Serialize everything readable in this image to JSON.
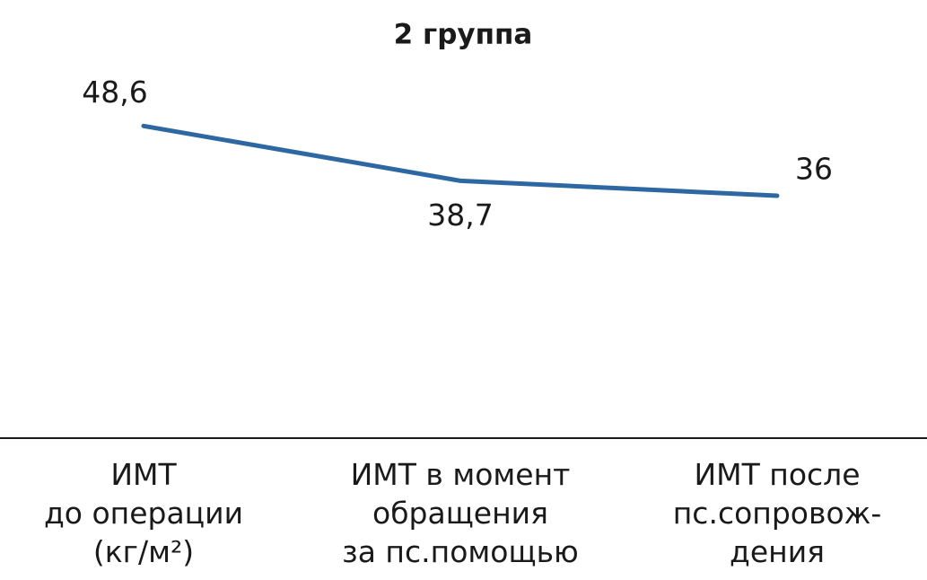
{
  "chart_data": {
    "type": "line",
    "title": "2 группа",
    "categories": [
      "ИМТ\nдо операции\n(кг/м²)",
      "ИМТ в момент\nобращения\nза пс.помощью",
      "ИМТ после\nпс.сопровож-\nдения"
    ],
    "series": [
      {
        "name": "2 группа",
        "color": "#2e68a3",
        "values": [
          48.6,
          38.7,
          36
        ],
        "value_labels": [
          "48,6",
          "38,7",
          "36"
        ]
      }
    ],
    "ylim": [
      0,
      60
    ]
  }
}
